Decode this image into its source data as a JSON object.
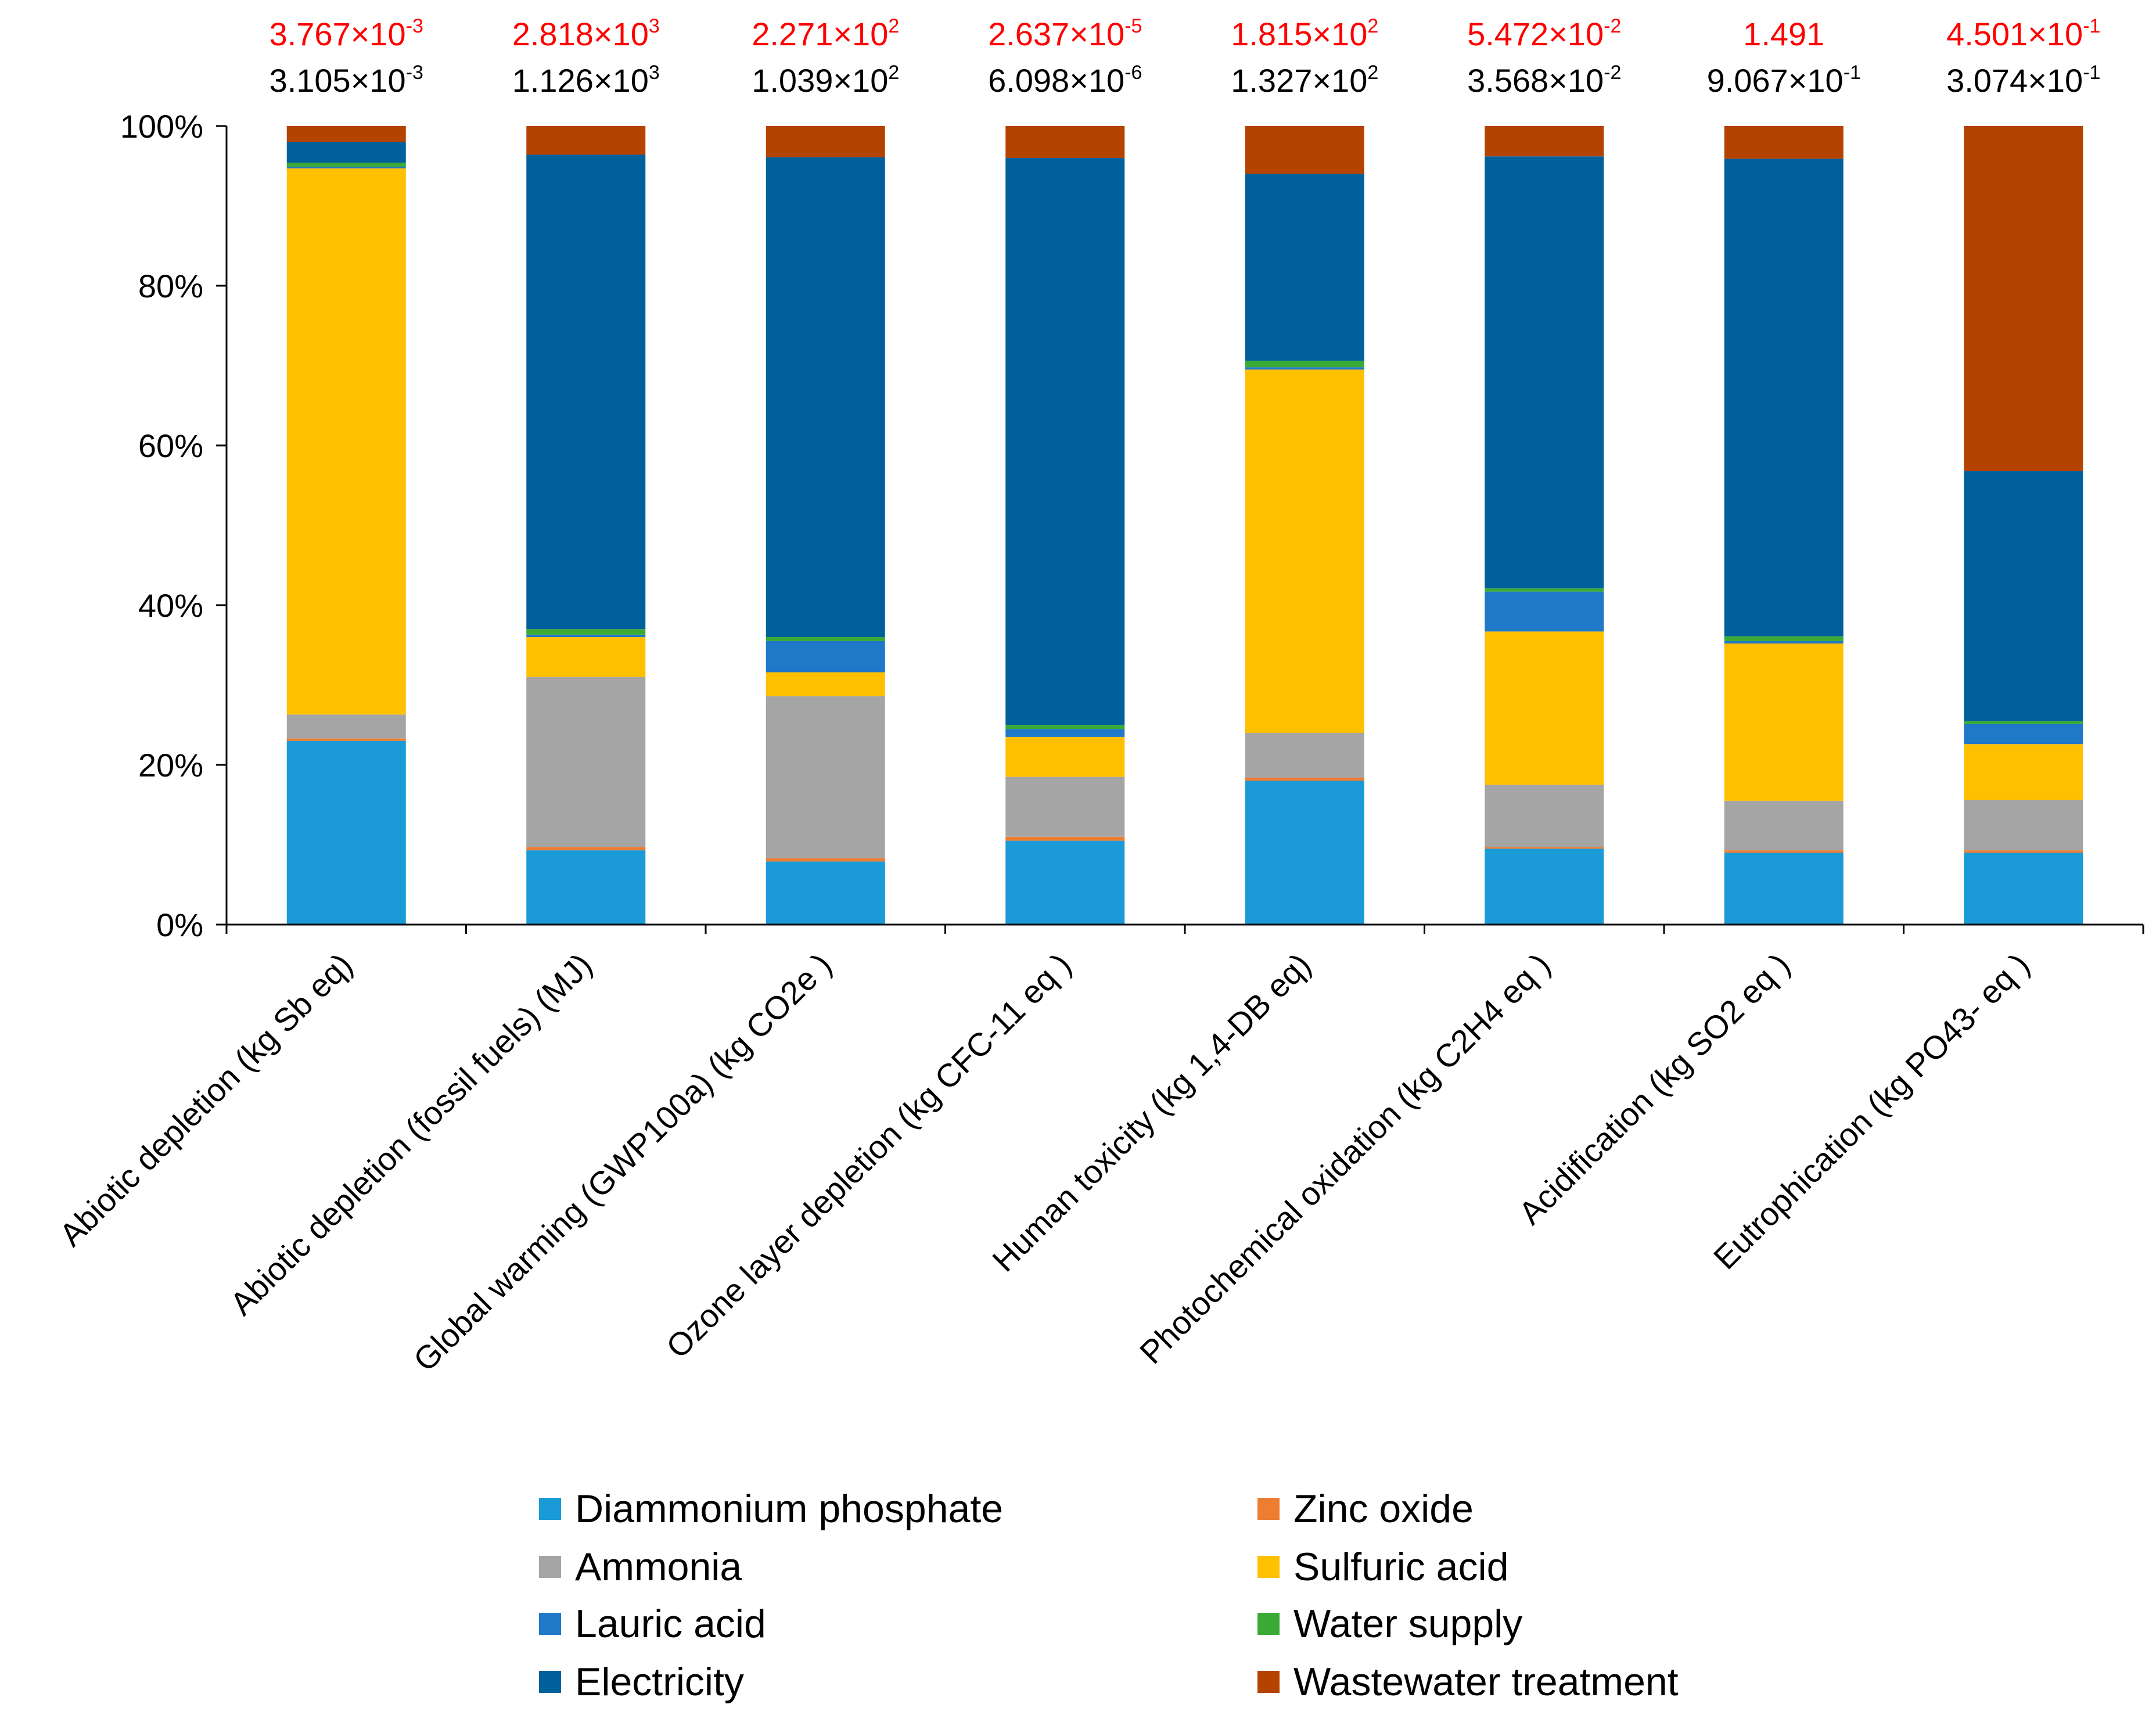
{
  "chart_data": {
    "type": "bar",
    "stacked": true,
    "percent_stacked": true,
    "title": "",
    "xlabel": "",
    "ylabel": "",
    "ylim": [
      0,
      100
    ],
    "y_ticks": [
      "0%",
      "20%",
      "40%",
      "60%",
      "80%",
      "100%"
    ],
    "y_tick_values": [
      0,
      20,
      40,
      60,
      80,
      100
    ],
    "categories": [
      "Abiotic depletion (kg Sb eq)",
      "Abiotic depletion (fossil fuels) (MJ)",
      "Global warming (GWP100a) (kg CO2e )",
      "Ozone layer depletion (kg CFC-11 eq )",
      "Human toxicity (kg 1,4-DB eq)",
      "Photochemical oxidation (kg C2H4 eq )",
      "Acidification (kg SO2 eq )",
      "Eutrophication (kg PO43- eq )"
    ],
    "top_values_red": [
      {
        "mantissa": "3.767",
        "times": "×10",
        "exp": "-3"
      },
      {
        "mantissa": "2.818",
        "times": "×10",
        "exp": "3"
      },
      {
        "mantissa": "2.271",
        "times": "×10",
        "exp": "2"
      },
      {
        "mantissa": "2.637",
        "times": "×10",
        "exp": "-5"
      },
      {
        "mantissa": "1.815",
        "times": "×10",
        "exp": "2"
      },
      {
        "mantissa": "5.472",
        "times": "×10",
        "exp": "-2"
      },
      {
        "mantissa": "1.491",
        "times": "",
        "exp": ""
      },
      {
        "mantissa": "4.501",
        "times": "×10",
        "exp": "-1"
      }
    ],
    "top_values_black": [
      {
        "mantissa": "3.105",
        "times": "×10",
        "exp": "-3"
      },
      {
        "mantissa": "1.126",
        "times": "×10",
        "exp": "3"
      },
      {
        "mantissa": "1.039",
        "times": "×10",
        "exp": "2"
      },
      {
        "mantissa": "6.098",
        "times": "×10",
        "exp": "-6"
      },
      {
        "mantissa": "1.327",
        "times": "×10",
        "exp": "2"
      },
      {
        "mantissa": "3.568",
        "times": "×10",
        "exp": "-2"
      },
      {
        "mantissa": "9.067",
        "times": "×10",
        "exp": "-1"
      },
      {
        "mantissa": "3.074",
        "times": "×10",
        "exp": "-1"
      }
    ],
    "series": [
      {
        "name": "Diammonium phosphate",
        "color": "#1a9ad7",
        "values": [
          23.0,
          9.3,
          7.9,
          10.5,
          18.0,
          9.5,
          9.0,
          9.0
        ]
      },
      {
        "name": "Zinc oxide",
        "color": "#ed7d31",
        "values": [
          0.3,
          0.4,
          0.4,
          0.5,
          0.4,
          0.2,
          0.3,
          0.3
        ]
      },
      {
        "name": "Ammonia",
        "color": "#a5a5a5",
        "values": [
          3.0,
          21.3,
          20.3,
          7.5,
          5.6,
          7.8,
          6.2,
          6.3
        ]
      },
      {
        "name": "Sulfuric acid",
        "color": "#ffc000",
        "values": [
          68.4,
          5.0,
          3.0,
          5.0,
          45.5,
          19.2,
          19.7,
          7.0
        ]
      },
      {
        "name": "Lauric acid",
        "color": "#1f78c8",
        "values": [
          0.2,
          0.3,
          3.9,
          1.0,
          0.3,
          5.0,
          0.3,
          2.5
        ]
      },
      {
        "name": "Water supply",
        "color": "#3aaa35",
        "values": [
          0.5,
          0.7,
          0.5,
          0.5,
          0.8,
          0.4,
          0.6,
          0.4
        ]
      },
      {
        "name": "Electricity",
        "color": "#00609c",
        "values": [
          2.6,
          59.4,
          60.1,
          71.0,
          23.4,
          54.1,
          59.8,
          31.3
        ]
      },
      {
        "name": "Wastewater treatment",
        "color": "#b54300",
        "values": [
          2.0,
          3.6,
          3.9,
          4.0,
          6.0,
          3.8,
          4.1,
          43.2
        ]
      }
    ],
    "legend_order": [
      "Diammonium phosphate",
      "Zinc oxide",
      "Ammonia",
      "Sulfuric acid",
      "Lauric acid",
      "Water supply",
      "Electricity",
      "Wastewater treatment"
    ],
    "legend_position": "bottom",
    "grid": false
  }
}
